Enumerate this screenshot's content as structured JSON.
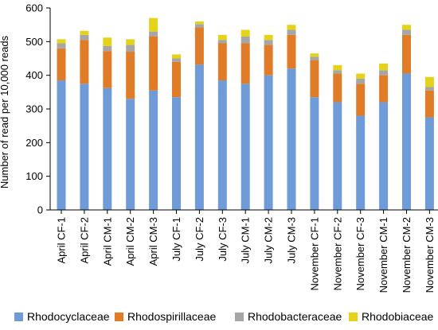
{
  "chart_data": {
    "type": "bar",
    "stacked": true,
    "title": "",
    "xlabel": "",
    "ylabel": "Number of read per 10,000 reads",
    "ylim": [
      0,
      600
    ],
    "yticks": [
      0,
      100,
      200,
      300,
      400,
      500,
      600
    ],
    "grid": false,
    "legend_position": "bottom",
    "categories": [
      "April CF-1",
      "April CF-2",
      "April CM-1",
      "April CM-2",
      "April CM-3",
      "July CF-1",
      "July CF-2",
      "July CF-3",
      "July CM-1",
      "July CM-2",
      "July CM-3",
      "November CF-1",
      "November CF-2",
      "November CF-3",
      "November CM-1",
      "November CM-2",
      "November CM-3"
    ],
    "series": [
      {
        "name": "Rhodocyclaceae",
        "color": "#6f9bd9",
        "values": [
          385,
          375,
          362,
          330,
          355,
          335,
          432,
          385,
          375,
          400,
          420,
          335,
          320,
          280,
          320,
          405,
          275
        ]
      },
      {
        "name": "Rhodospirillaceae",
        "color": "#e07b27",
        "values": [
          95,
          130,
          110,
          140,
          160,
          105,
          110,
          110,
          120,
          90,
          100,
          110,
          85,
          95,
          80,
          115,
          80
        ]
      },
      {
        "name": "Rhodobacteraceae",
        "color": "#a6a6a6",
        "values": [
          15,
          15,
          15,
          20,
          15,
          10,
          10,
          10,
          20,
          15,
          15,
          10,
          10,
          15,
          15,
          15,
          10
        ]
      },
      {
        "name": "Rhodobiaceae",
        "color": "#e4d31a",
        "values": [
          12,
          12,
          25,
          17,
          40,
          12,
          8,
          15,
          20,
          15,
          15,
          10,
          15,
          15,
          20,
          15,
          30
        ]
      }
    ]
  }
}
